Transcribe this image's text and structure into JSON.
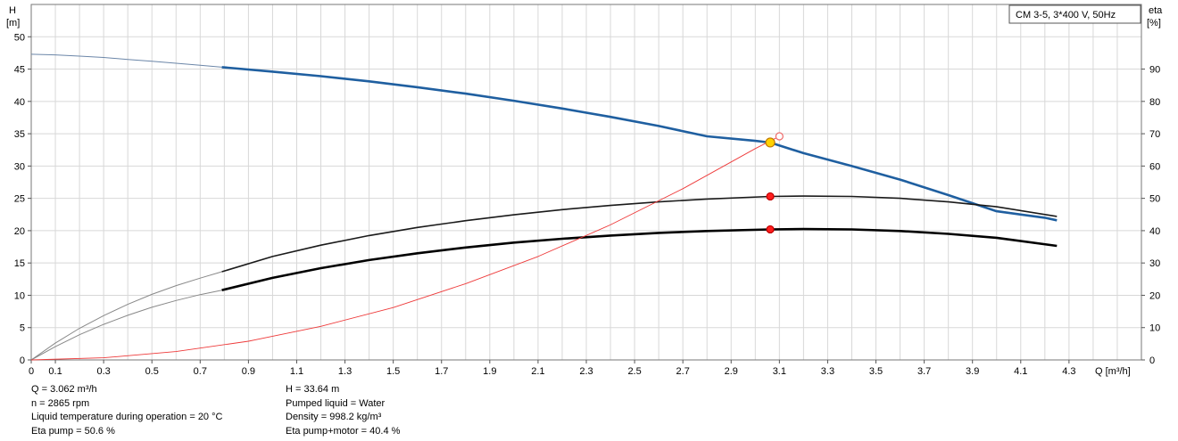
{
  "chart_data": {
    "type": "line",
    "legend_box": "CM 3-5, 3*400 V, 50Hz",
    "left_axis": {
      "label_top": "H",
      "label_unit": "[m]",
      "ylim": [
        0,
        55
      ],
      "ticks": [
        0,
        5,
        10,
        15,
        20,
        25,
        30,
        35,
        40,
        45,
        50
      ]
    },
    "right_axis": {
      "label_top": "eta",
      "label_unit": "[%]",
      "ylim": [
        0,
        110
      ],
      "ticks": [
        0,
        10,
        20,
        30,
        40,
        50,
        60,
        70,
        80,
        90
      ]
    },
    "x_axis": {
      "label": "Q [m³/h]",
      "xlim": [
        0,
        4.6
      ],
      "ticks": [
        "0",
        "0.1",
        "0.3",
        "0.5",
        "0.7",
        "0.9",
        "1.1",
        "1.3",
        "1.5",
        "1.7",
        "1.9",
        "2.1",
        "2.3",
        "2.5",
        "2.7",
        "2.9",
        "3.1",
        "3.3",
        "3.5",
        "3.7",
        "3.9",
        "4.1",
        "4.3"
      ],
      "minor_step": 0.1
    },
    "grid": true,
    "series": [
      {
        "role": "head",
        "axis": "left",
        "color": "#1f5fa0",
        "x_ext": [
          0,
          0.1,
          0.2,
          0.3,
          0.4,
          0.5,
          0.6,
          0.7,
          0.79
        ],
        "y_ext": [
          47.3,
          47.2,
          47.0,
          46.8,
          46.5,
          46.2,
          45.9,
          45.6,
          45.3
        ],
        "x": [
          0.79,
          1.0,
          1.2,
          1.4,
          1.6,
          1.8,
          2.0,
          2.2,
          2.4,
          2.6,
          2.8,
          3.0,
          3.062,
          3.2,
          3.4,
          3.6,
          3.8,
          4.0,
          4.2,
          4.25
        ],
        "y": [
          45.3,
          44.6,
          43.9,
          43.1,
          42.2,
          41.2,
          40.1,
          38.9,
          37.6,
          36.2,
          34.6,
          33.9,
          33.64,
          32.0,
          30.0,
          27.9,
          25.5,
          23.0,
          22.0,
          21.6
        ]
      },
      {
        "role": "eta_pump",
        "axis": "right",
        "color": "#1a1a1a",
        "x_ext": [
          0,
          0.1,
          0.2,
          0.3,
          0.4,
          0.5,
          0.6,
          0.7,
          0.79
        ],
        "y_ext": [
          0,
          5.2,
          9.8,
          13.7,
          17.2,
          20.3,
          23.0,
          25.3,
          27.3
        ],
        "x": [
          0.79,
          1.0,
          1.2,
          1.4,
          1.6,
          1.8,
          2.0,
          2.2,
          2.4,
          2.6,
          2.8,
          3.062,
          3.2,
          3.4,
          3.6,
          3.8,
          4.0,
          4.25
        ],
        "y": [
          27.3,
          32.0,
          35.5,
          38.5,
          41.0,
          43.1,
          44.9,
          46.5,
          47.8,
          48.9,
          49.8,
          50.6,
          50.7,
          50.6,
          50.0,
          48.9,
          47.4,
          44.4
        ]
      },
      {
        "role": "eta_pump_motor",
        "axis": "right",
        "color": "#000000",
        "x_ext": [
          0,
          0.1,
          0.2,
          0.3,
          0.4,
          0.5,
          0.6,
          0.7,
          0.79
        ],
        "y_ext": [
          0,
          4.1,
          7.8,
          11.0,
          13.8,
          16.3,
          18.4,
          20.2,
          21.6
        ],
        "x": [
          0.79,
          1.0,
          1.2,
          1.4,
          1.6,
          1.8,
          2.0,
          2.2,
          2.4,
          2.6,
          2.8,
          3.062,
          3.2,
          3.4,
          3.6,
          3.8,
          4.0,
          4.25
        ],
        "y": [
          21.6,
          25.4,
          28.4,
          30.9,
          33.0,
          34.8,
          36.3,
          37.5,
          38.5,
          39.3,
          39.9,
          40.4,
          40.5,
          40.4,
          39.9,
          39.0,
          37.8,
          35.3
        ]
      },
      {
        "role": "system_curve",
        "axis": "left",
        "color": "#ee3a3a",
        "x": [
          0,
          0.3,
          0.6,
          0.9,
          1.2,
          1.5,
          1.8,
          2.1,
          2.4,
          2.7,
          3.0,
          3.1
        ],
        "y": [
          0,
          0.33,
          1.3,
          2.9,
          5.2,
          8.1,
          11.8,
          16.0,
          20.9,
          26.5,
          32.7,
          34.6
        ]
      }
    ],
    "duty_points": [
      {
        "x": 3.062,
        "y": 33.64,
        "axis": "left",
        "fill": "#ffd200",
        "stroke": "#c07800"
      },
      {
        "x": 3.062,
        "y": 50.6,
        "axis": "right",
        "fill": "#ff1e1e",
        "stroke": "#c00000"
      },
      {
        "x": 3.062,
        "y": 40.4,
        "axis": "right",
        "fill": "#ff1e1e",
        "stroke": "#c00000"
      },
      {
        "x": 3.1,
        "y": 34.6,
        "axis": "left",
        "fill": "#ffffff",
        "stroke": "#ee6a6a"
      }
    ]
  },
  "info": {
    "left": [
      "Q = 3.062 m³/h",
      "n = 2865 rpm",
      "Liquid temperature during operation = 20 °C",
      "Eta pump = 50.6 %"
    ],
    "right": [
      "H = 33.64 m",
      "Pumped liquid = Water",
      "Density = 998.2 kg/m³",
      "Eta pump+motor = 40.4 %"
    ]
  }
}
